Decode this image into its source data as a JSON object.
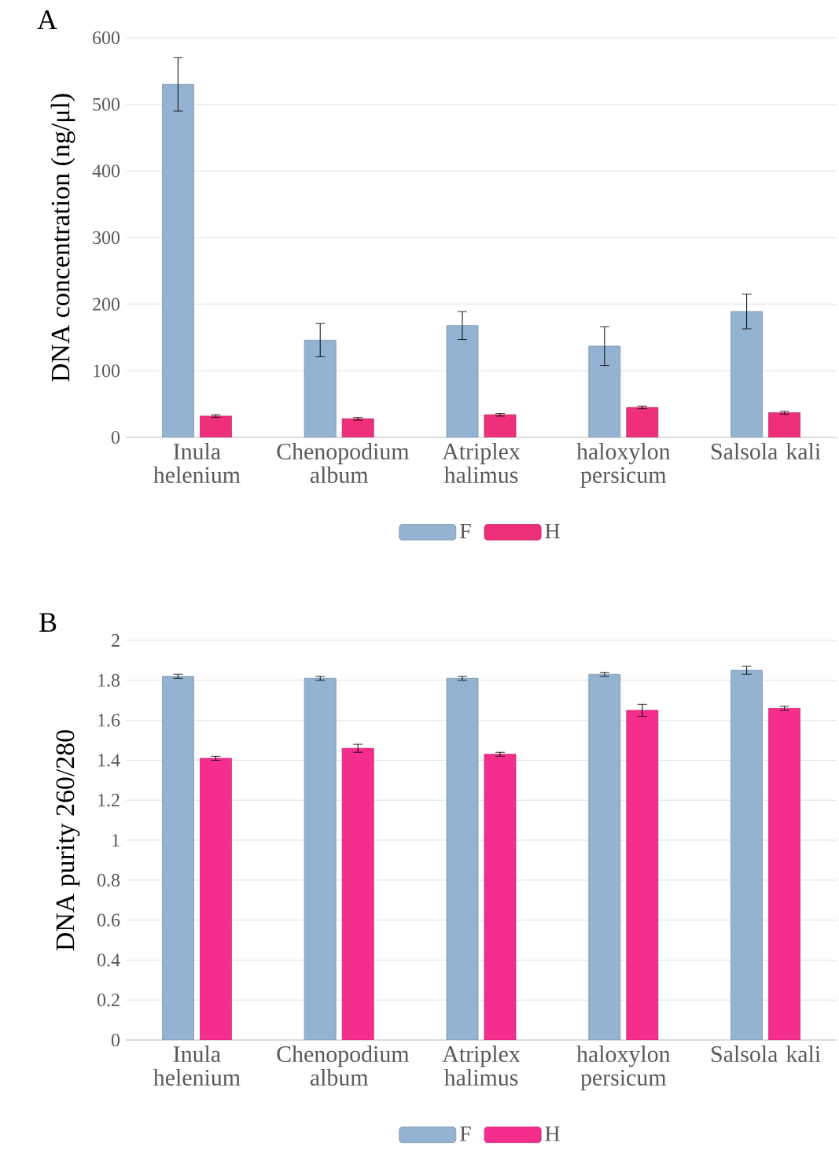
{
  "chart_data": [
    {
      "type": "bar",
      "title": "A",
      "ylabel": "DNA concentration (ng/μl)",
      "categories": [
        "Inula helenium",
        "Chenopodium album",
        "Atriplex halimus",
        "haloxylon persicum",
        "Salsola kali"
      ],
      "series": [
        {
          "name": "F",
          "color": "#94b3d3",
          "values": [
            530,
            146,
            168,
            137,
            189
          ],
          "errors": [
            40,
            25,
            21,
            29,
            26
          ]
        },
        {
          "name": "H",
          "color": "#ee2f7a",
          "values": [
            32,
            28,
            34,
            45,
            37
          ],
          "errors": [
            2,
            2,
            2,
            2,
            2
          ]
        }
      ],
      "ylim": [
        0,
        600
      ],
      "yticks": [
        0,
        100,
        200,
        300,
        400,
        500,
        600
      ],
      "grid": "y",
      "legend": "bottom"
    },
    {
      "type": "bar",
      "title": "B",
      "ylabel": "DNA purity 260/280",
      "categories": [
        "Inula helenium",
        "Chenopodium album",
        "Atriplex halimus",
        "haloxylon persicum",
        "Salsola kali"
      ],
      "series": [
        {
          "name": "F",
          "color": "#94b3d3",
          "values": [
            1.82,
            1.81,
            1.81,
            1.83,
            1.85
          ],
          "errors": [
            0.01,
            0.01,
            0.01,
            0.01,
            0.02
          ]
        },
        {
          "name": "H",
          "color": "#f52d8c",
          "values": [
            1.41,
            1.46,
            1.43,
            1.65,
            1.66
          ],
          "errors": [
            0.01,
            0.02,
            0.01,
            0.03,
            0.01
          ]
        }
      ],
      "ylim": [
        0,
        2
      ],
      "yticks": [
        0,
        0.2,
        0.4,
        0.6,
        0.8,
        1,
        1.2,
        1.4,
        1.6,
        1.8,
        2
      ],
      "grid": "y",
      "legend": "bottom"
    }
  ]
}
